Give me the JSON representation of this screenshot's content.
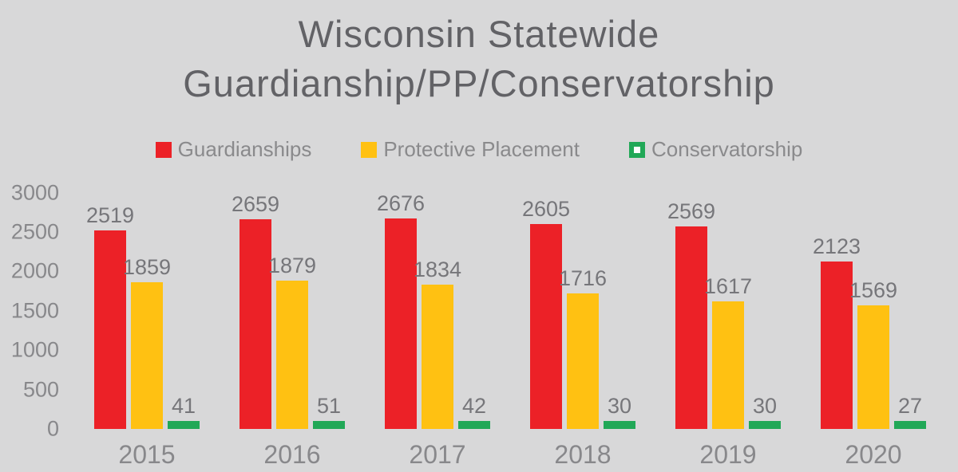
{
  "chart_data": {
    "type": "bar",
    "title": "Wisconsin Statewide Guardianship/PP/Conservatorship",
    "categories": [
      "2015",
      "2016",
      "2017",
      "2018",
      "2019",
      "2020"
    ],
    "series": [
      {
        "name": "Guardianships",
        "color": "#ec2127",
        "marker": "filled-square",
        "values": [
          2519,
          2659,
          2676,
          2605,
          2569,
          2123
        ]
      },
      {
        "name": "Protective Placement",
        "color": "#ffc112",
        "marker": "filled-square",
        "values": [
          1859,
          1879,
          1834,
          1716,
          1617,
          1569
        ]
      },
      {
        "name": "Conservatorship",
        "color": "#21a857",
        "marker": "hollow-square",
        "values": [
          41,
          51,
          42,
          30,
          30,
          27
        ]
      }
    ],
    "y_ticks": [
      3000,
      2500,
      2000,
      1500,
      1000,
      500,
      0
    ],
    "ylim": [
      0,
      3000
    ],
    "xlabel": "",
    "ylabel": "",
    "grid": false,
    "legend_position": "top-center",
    "value_labels": true
  },
  "colors": {
    "background": "#d8d8d9",
    "title_text": "#626266",
    "value_label_text": "#76767a",
    "axis_text": "#88888b",
    "legend_text": "#8a8a8c",
    "hollow_marker_inner": "#ffffff"
  }
}
